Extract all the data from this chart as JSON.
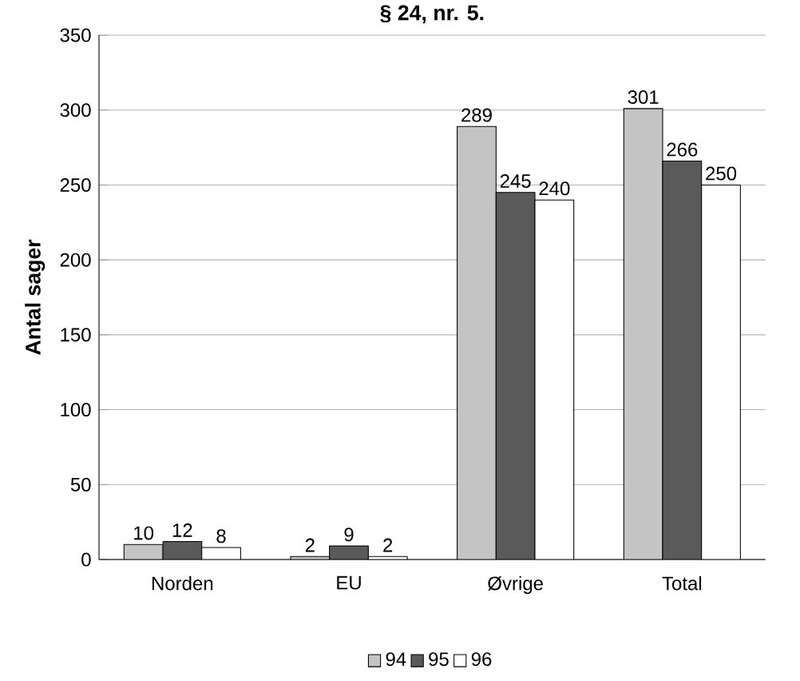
{
  "chart_data": {
    "type": "bar",
    "title": "§ 24, nr. 5.",
    "ylabel": "Antal sager",
    "categories": [
      "Norden",
      "EU",
      "Øvrige",
      "Total"
    ],
    "series": [
      {
        "name": "94",
        "color": "#c4c4c4",
        "values": [
          10,
          2,
          289,
          301
        ]
      },
      {
        "name": "95",
        "color": "#5a5a5a",
        "values": [
          12,
          9,
          245,
          266
        ]
      },
      {
        "name": "96",
        "color": "#ffffff",
        "values": [
          8,
          2,
          240,
          250
        ]
      }
    ],
    "ylim": [
      0,
      350
    ],
    "yticks": [
      0,
      50,
      100,
      150,
      200,
      250,
      300,
      350
    ],
    "grid": "y",
    "legend": "bottom",
    "data_labels": true
  }
}
